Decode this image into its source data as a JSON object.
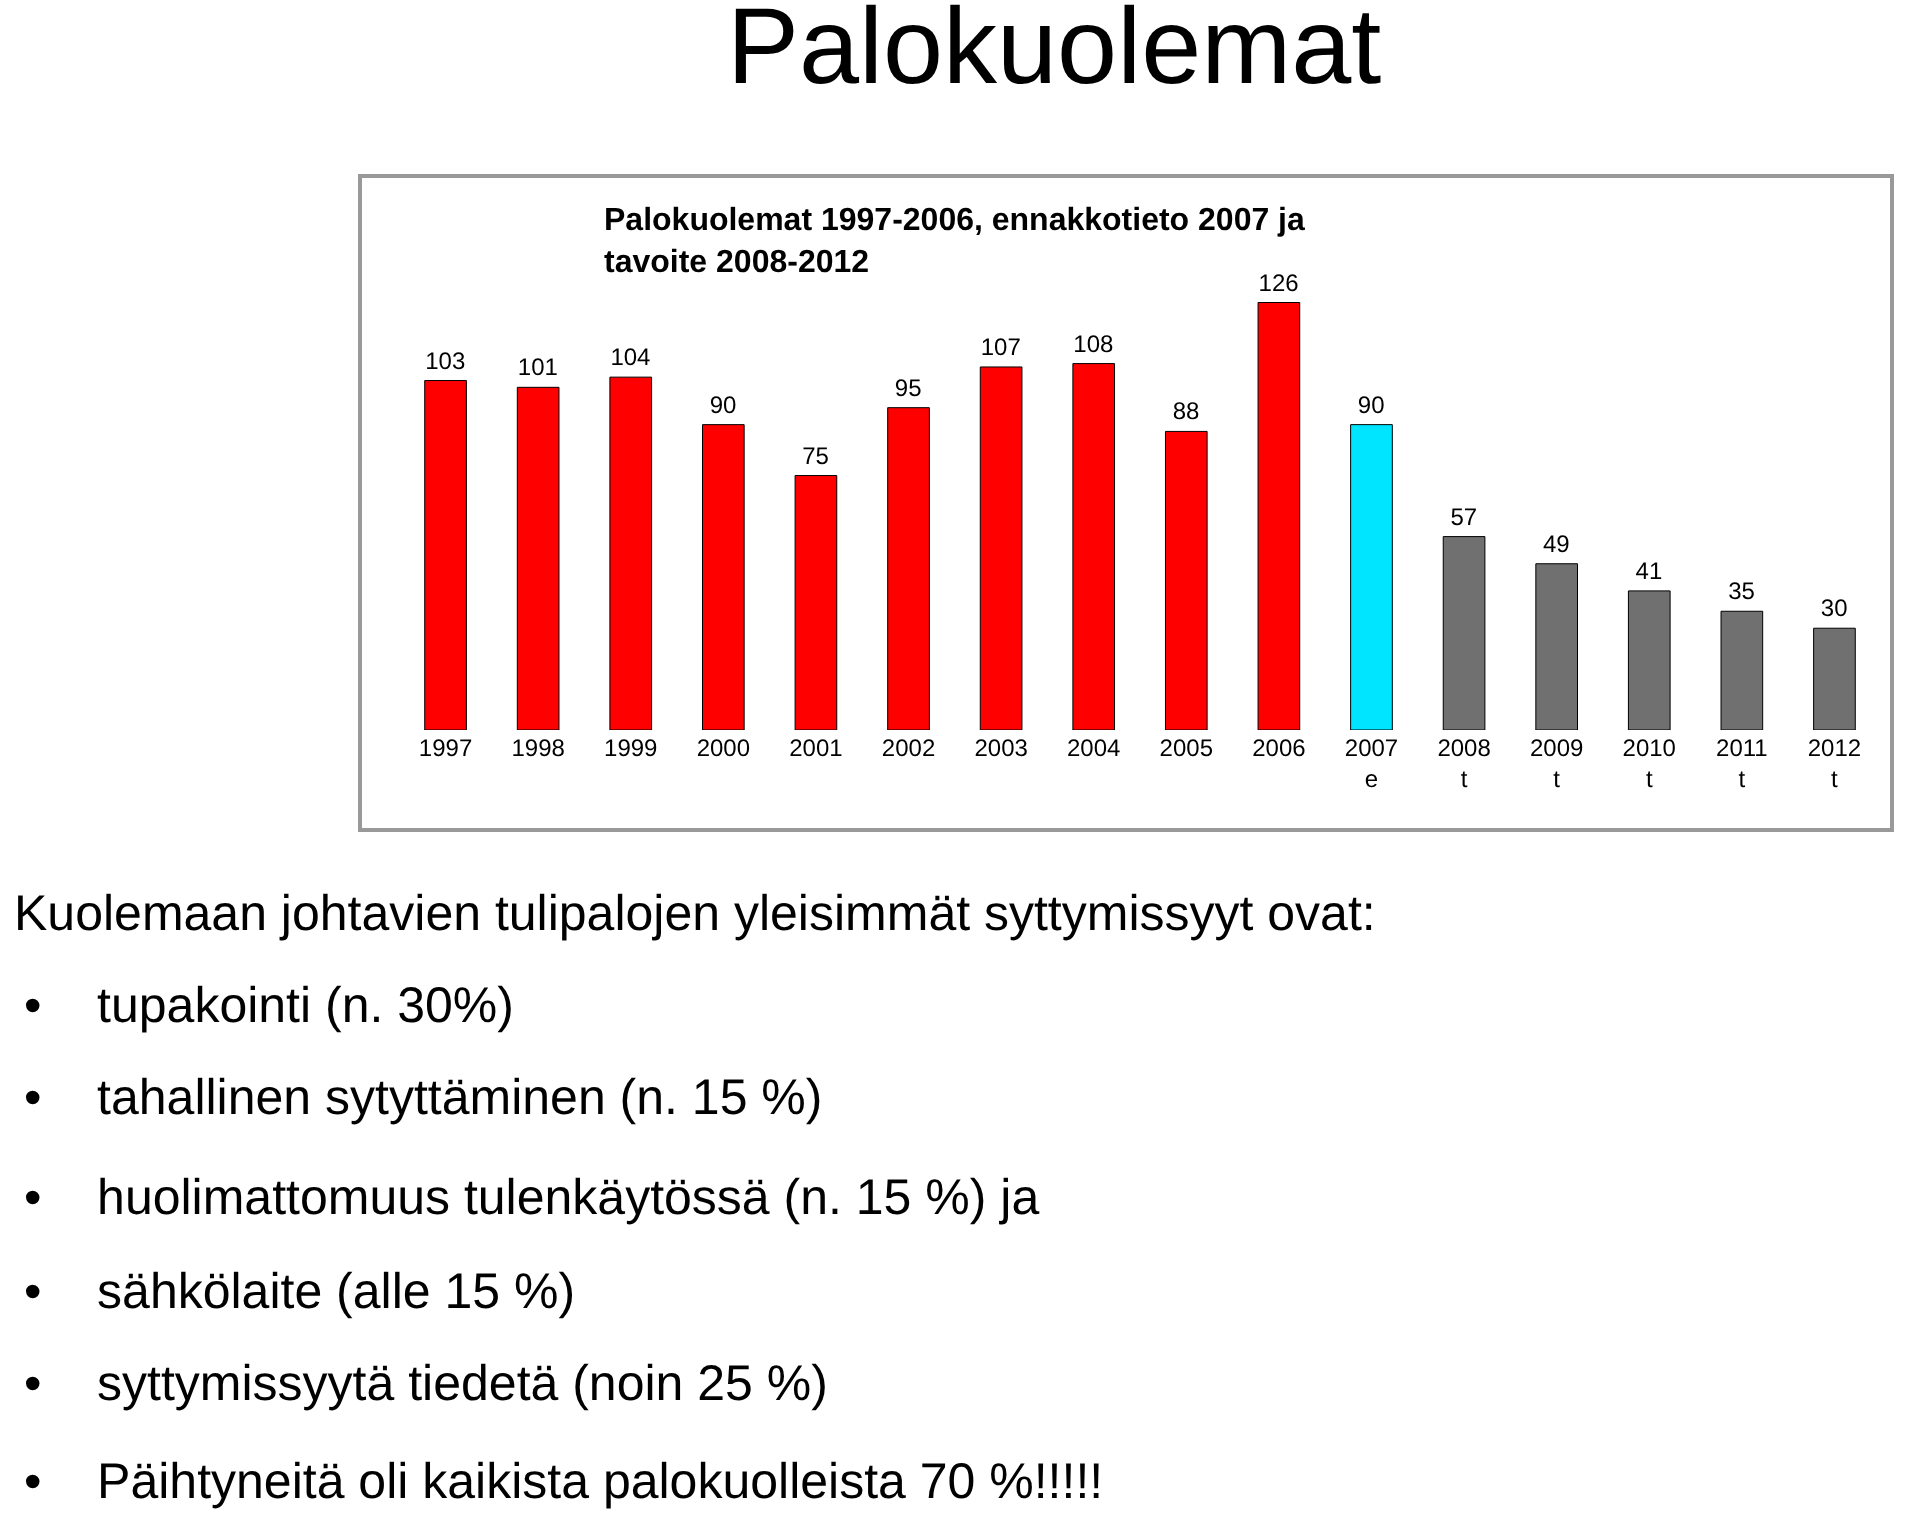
{
  "chart_data": {
    "type": "bar",
    "title": "Palokuolemat",
    "subtitle": "Palokuolemat 1997-2006, ennakkotieto 2007 ja\ntavoite 2008-2012",
    "categories": [
      "1997",
      "1998",
      "1999",
      "2000",
      "2001",
      "2002",
      "2003",
      "2004",
      "2005",
      "2006",
      "2007\ne",
      "2008\nt",
      "2009\nt",
      "2010\nt",
      "2011\nt",
      "2012\nt"
    ],
    "values": [
      103,
      101,
      104,
      90,
      75,
      95,
      107,
      108,
      88,
      126,
      90,
      57,
      49,
      41,
      35,
      30
    ],
    "colors": [
      "#ff0000",
      "#ff0000",
      "#ff0000",
      "#ff0000",
      "#ff0000",
      "#ff0000",
      "#ff0000",
      "#ff0000",
      "#ff0000",
      "#ff0000",
      "#00e5ff",
      "#707070",
      "#707070",
      "#707070",
      "#707070",
      "#707070"
    ],
    "data_labels": true,
    "annotations": [
      "Kuolemaan johtavien tulipalojen yleisimmät syttymissyyt ovat:",
      "•    tupakointi (n. 30%)",
      "•    tahallinen sytyttäminen (n. 15 %)",
      "•    huolimattomuus tulenkäytössä (n. 15 %) ja",
      "•    sähkölaite (alle 15 %)",
      "•    syttymissyytä tiedetä (noin 25 %)",
      "•    Päihtyneitä oli kaikista palokuolleista 70 %!!!!!"
    ]
  }
}
